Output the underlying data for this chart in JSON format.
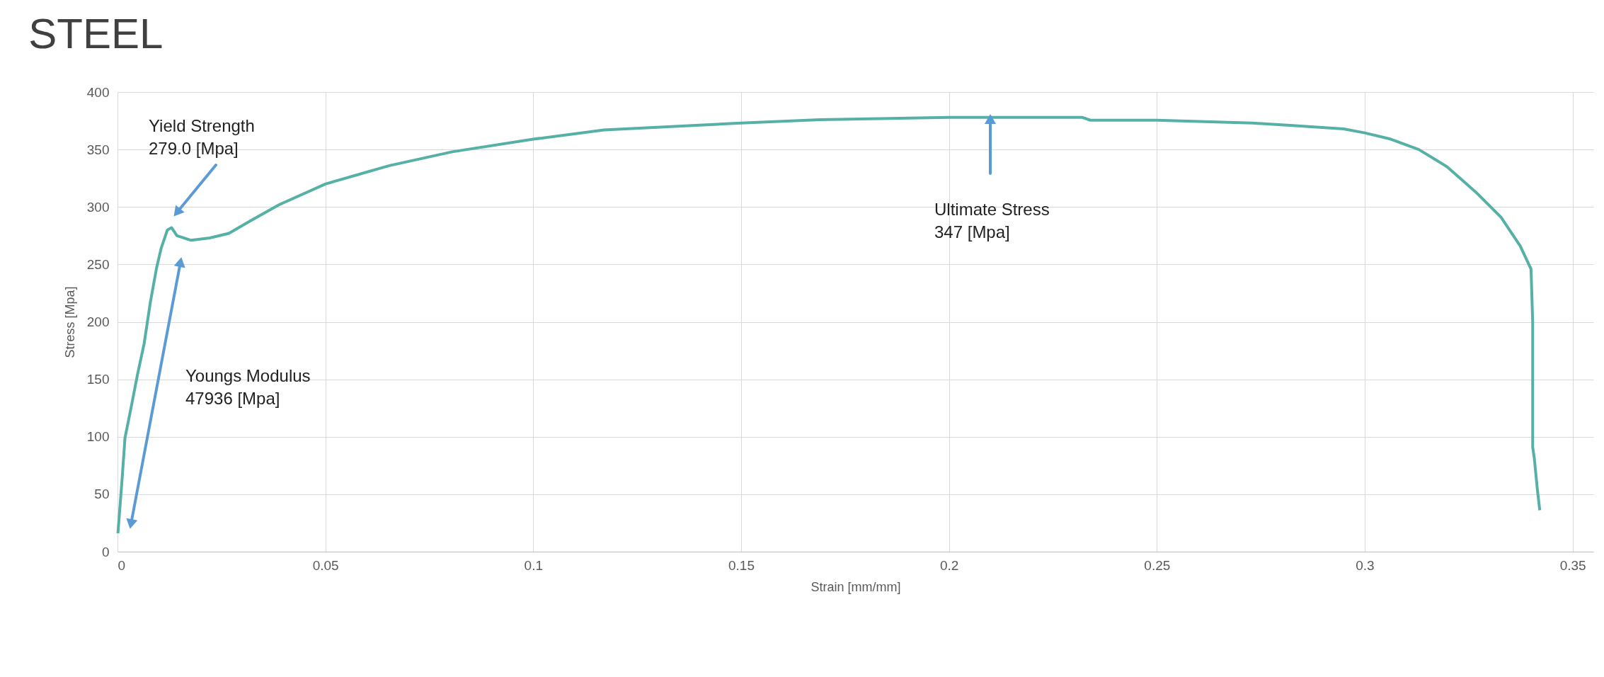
{
  "chart_data": {
    "type": "line",
    "title": "STEEL",
    "xlabel": "Strain [mm/mm]",
    "ylabel": "Stress [Mpa]",
    "x": [
      0.0001,
      0.0011,
      0.0018,
      0.0033,
      0.0048,
      0.0064,
      0.0079,
      0.0094,
      0.0105,
      0.012,
      0.013,
      0.0143,
      0.0177,
      0.0222,
      0.0268,
      0.032,
      0.0389,
      0.05,
      0.0654,
      0.0805,
      0.1,
      0.117,
      0.15,
      0.169,
      0.2,
      0.232,
      0.234,
      0.25,
      0.273,
      0.282,
      0.2949,
      0.3,
      0.3063,
      0.313,
      0.3198,
      0.3267,
      0.3328,
      0.3374,
      0.34,
      0.3404,
      0.3404,
      0.3408,
      0.3415,
      0.3421
    ],
    "series": [
      {
        "color": "#55b0a6",
        "values": [
          16,
          63,
          99,
          126,
          154,
          181,
          217,
          247,
          264,
          280,
          282,
          275,
          271,
          273,
          277,
          288,
          302,
          320,
          336,
          348,
          359,
          367,
          373,
          376,
          378,
          378,
          375.5,
          375.5,
          373,
          371,
          368,
          364.5,
          359,
          350,
          335,
          313,
          291,
          266,
          246,
          200,
          91,
          81,
          55,
          36
        ]
      }
    ],
    "xlim": [
      0,
      0.355
    ],
    "xticks": [
      0,
      0.05,
      0.1,
      0.15,
      0.2,
      0.25,
      0.3,
      0.35
    ],
    "ylim": [
      0,
      400
    ],
    "yticks": [
      0,
      50,
      100,
      150,
      200,
      250,
      300,
      350,
      400
    ],
    "grid": true,
    "marker": "none",
    "line_style": "solid",
    "annotations": [
      "Yield Strength\n279.0 [Mpa]",
      "Youngs Modulus\n47936 [Mpa]",
      "Ultimate Stress\n347 [Mpa]"
    ]
  }
}
